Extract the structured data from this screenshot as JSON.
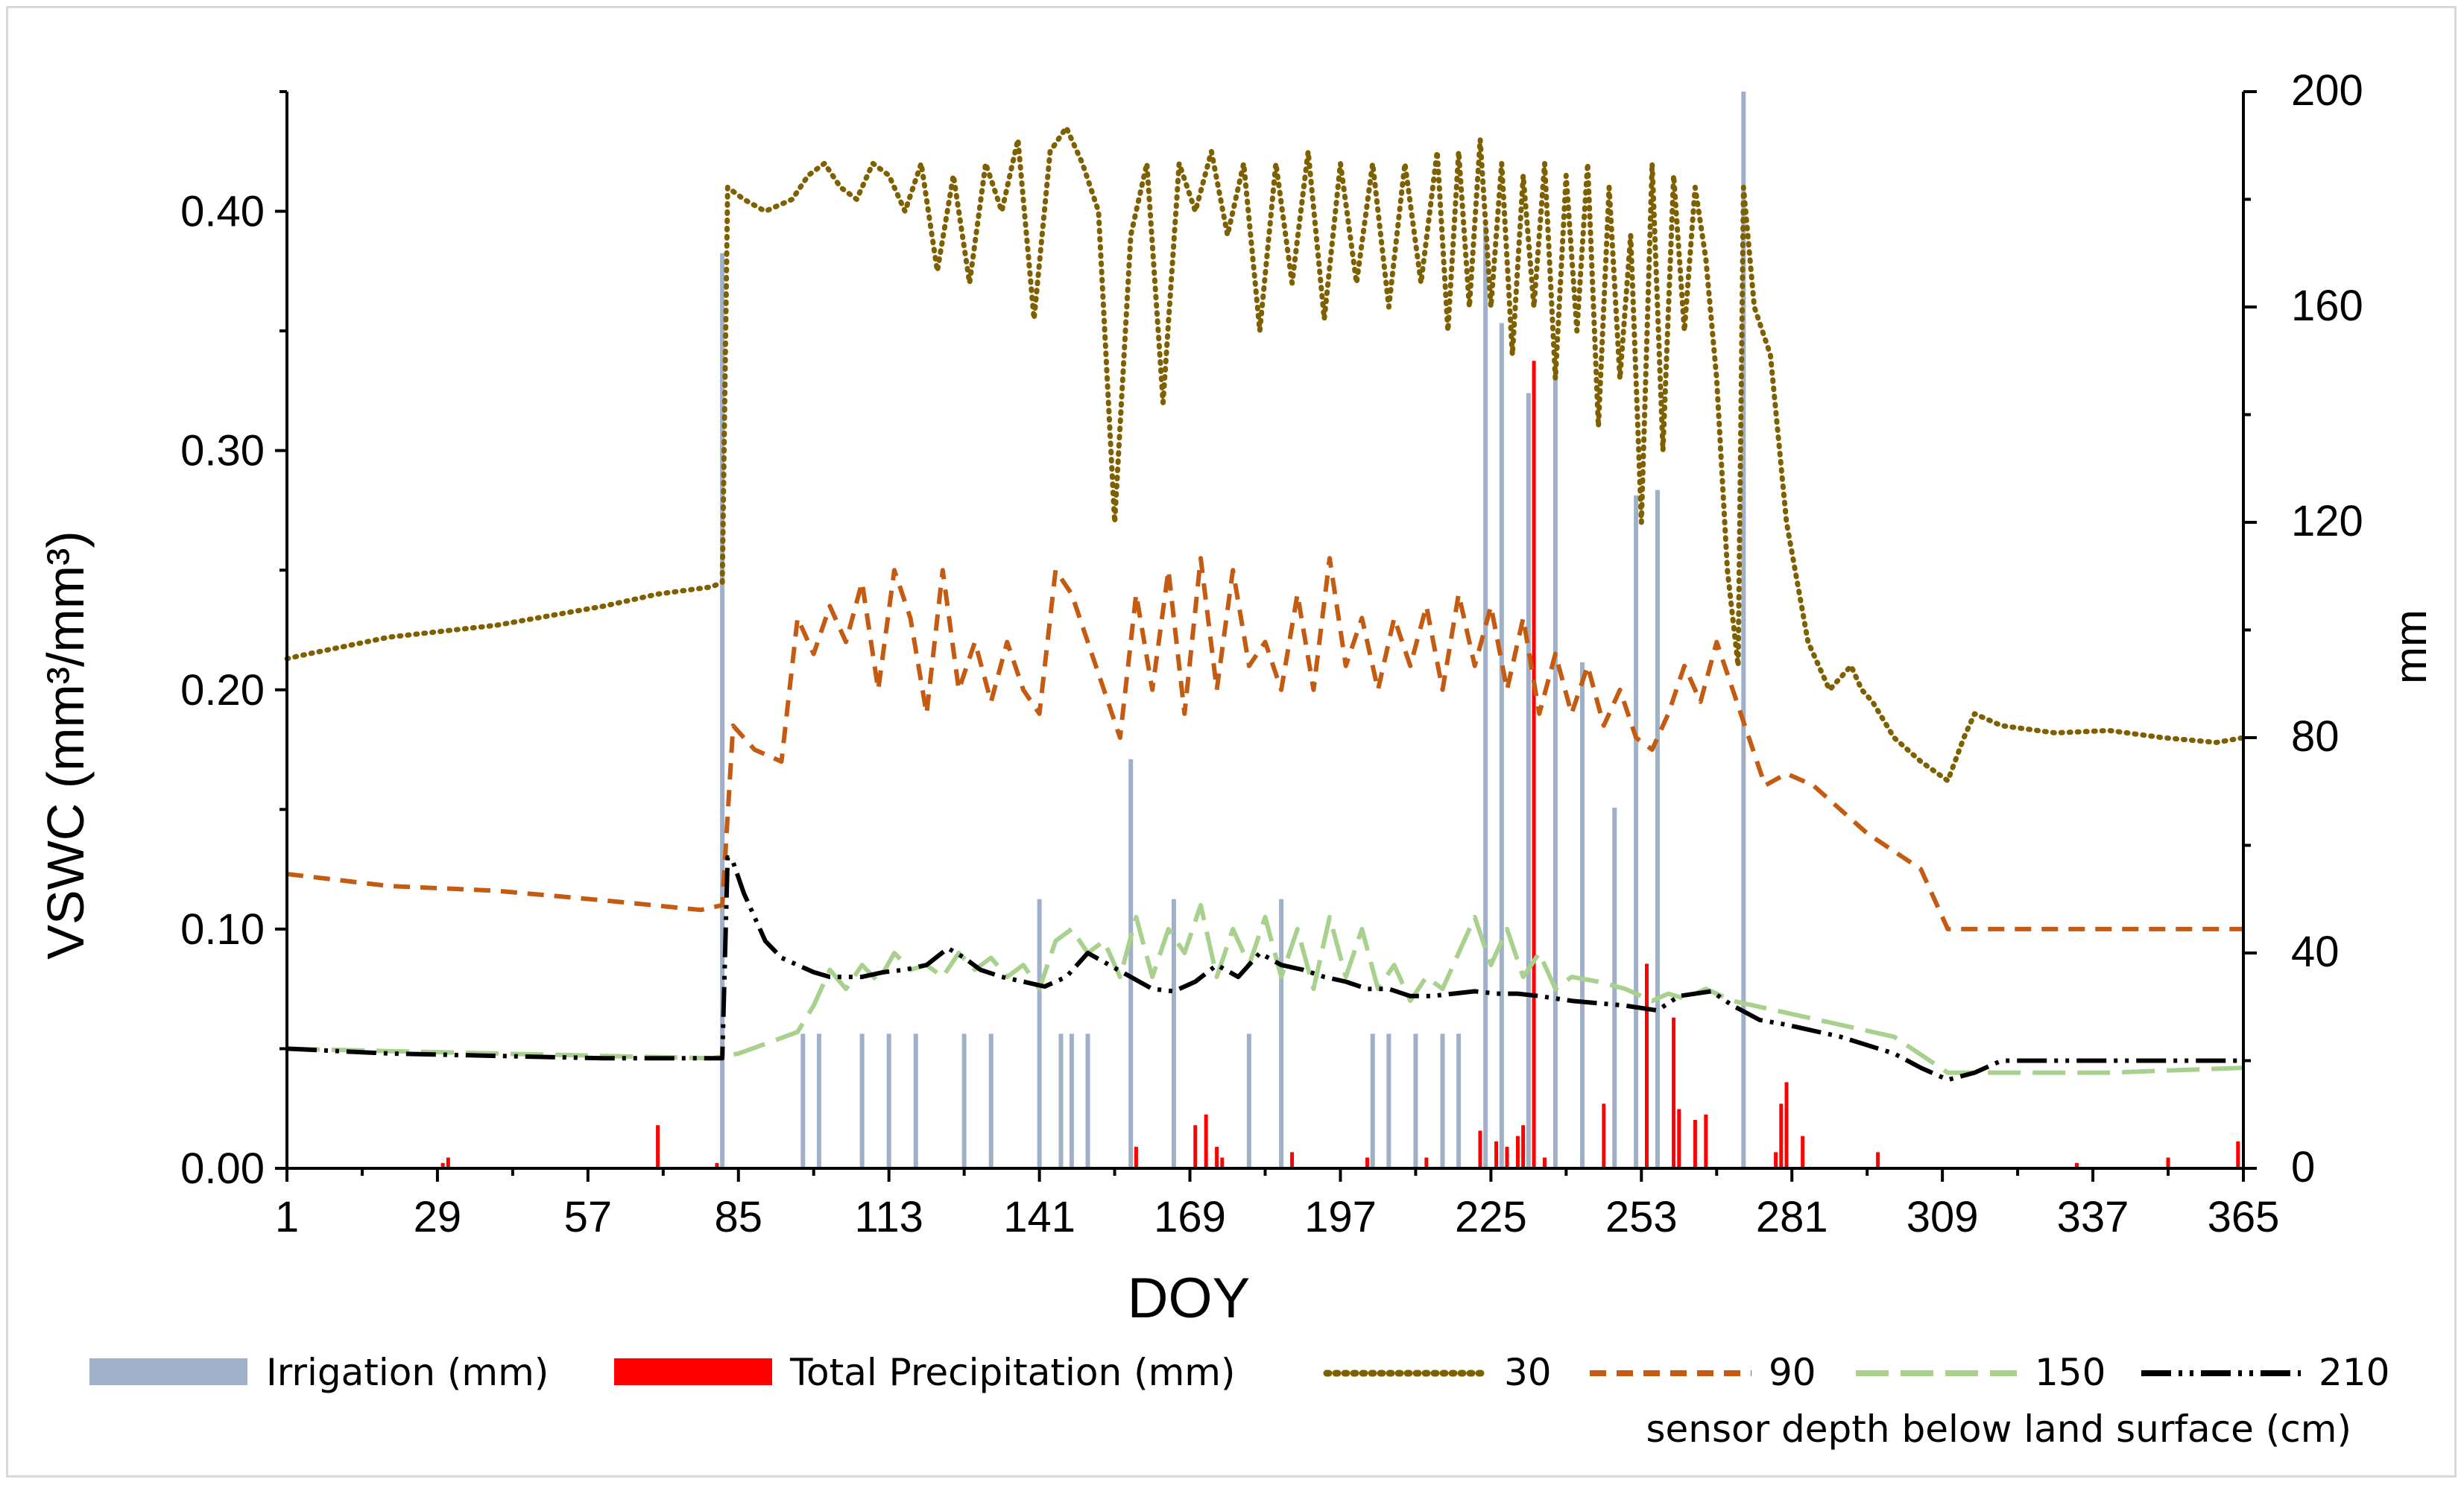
{
  "chart_data": {
    "type": "combo-line-bar",
    "xlabel": "DOY",
    "ylabel_left": "VSWC (mm³/mm³)",
    "ylabel_right": "mm",
    "x_ticks": [
      "1",
      "29",
      "57",
      "85",
      "113",
      "141",
      "169",
      "197",
      "225",
      "253",
      "281",
      "309",
      "337",
      "365"
    ],
    "xlim": [
      1,
      365
    ],
    "y_left_ticks": [
      "0.00",
      "0.10",
      "0.20",
      "0.30",
      "0.40"
    ],
    "ylim_left": [
      0,
      0.45
    ],
    "y_right_ticks": [
      "0",
      "40",
      "80",
      "120",
      "160",
      "200"
    ],
    "ylim_right": [
      0,
      200
    ],
    "legend": {
      "irrigation": "Irrigation (mm)",
      "precipitation": "Total Precipitation (mm)",
      "d30": "30",
      "d90": "90",
      "d150": "150",
      "d210": "210",
      "depth_note": "sensor depth below land surface (cm)"
    },
    "colors": {
      "irrigation": "#9fb0c8",
      "precipitation": "#ff0000",
      "d30": "#7f6000",
      "d90": "#c55a11",
      "d150": "#a9d18e",
      "d210": "#000000"
    },
    "irrigation": {
      "doy": [
        82,
        97,
        100,
        108,
        113,
        118,
        127,
        132,
        141,
        145,
        147,
        150,
        158,
        166,
        180,
        186,
        203,
        206,
        211,
        216,
        219,
        224,
        227,
        232,
        237,
        242,
        248,
        252,
        256,
        272
      ],
      "mm": [
        170,
        25,
        25,
        25,
        25,
        25,
        25,
        25,
        50,
        25,
        25,
        25,
        76,
        50,
        25,
        50,
        25,
        25,
        25,
        25,
        25,
        175,
        157,
        144,
        149,
        94,
        67,
        125,
        126,
        200
      ]
    },
    "precipitation": {
      "doy": [
        30,
        31,
        70,
        81,
        159,
        170,
        172,
        174,
        175,
        188,
        202,
        213,
        223,
        226,
        228,
        230,
        231,
        233,
        235,
        246,
        254,
        259,
        260,
        263,
        265,
        278,
        279,
        280,
        283,
        297,
        334,
        351,
        364
      ],
      "mm": [
        1,
        2,
        8,
        1,
        4,
        8,
        10,
        4,
        2,
        3,
        2,
        2,
        7,
        5,
        4,
        6,
        8,
        150,
        2,
        12,
        38,
        28,
        11,
        9,
        10,
        3,
        12,
        16,
        6,
        3,
        1,
        2,
        5
      ]
    },
    "series": [
      {
        "name": "30",
        "x": [
          1,
          5,
          20,
          40,
          60,
          70,
          80,
          82,
          83,
          86,
          90,
          95,
          98,
          101,
          104,
          107,
          110,
          113,
          116,
          119,
          122,
          125,
          128,
          131,
          134,
          137,
          140,
          143,
          146,
          149,
          152,
          155,
          158,
          161,
          164,
          167,
          170,
          173,
          176,
          179,
          182,
          185,
          188,
          191,
          194,
          197,
          200,
          203,
          206,
          209,
          212,
          215,
          217,
          219,
          221,
          223,
          225,
          227,
          229,
          231,
          233,
          235,
          237,
          239,
          241,
          243,
          245,
          247,
          249,
          251,
          253,
          255,
          257,
          259,
          261,
          263,
          265,
          267,
          269,
          271,
          272,
          274,
          277,
          280,
          284,
          288,
          292,
          294,
          296,
          300,
          305,
          310,
          313,
          315,
          320,
          330,
          340,
          350,
          360,
          365
        ],
        "values": [
          0.213,
          0.215,
          0.222,
          0.227,
          0.235,
          0.24,
          0.243,
          0.245,
          0.41,
          0.405,
          0.4,
          0.405,
          0.415,
          0.42,
          0.41,
          0.405,
          0.42,
          0.415,
          0.4,
          0.42,
          0.375,
          0.415,
          0.37,
          0.42,
          0.4,
          0.43,
          0.355,
          0.425,
          0.435,
          0.42,
          0.4,
          0.27,
          0.39,
          0.42,
          0.32,
          0.42,
          0.4,
          0.425,
          0.39,
          0.42,
          0.35,
          0.42,
          0.37,
          0.425,
          0.355,
          0.42,
          0.37,
          0.42,
          0.36,
          0.42,
          0.37,
          0.425,
          0.35,
          0.425,
          0.36,
          0.43,
          0.36,
          0.42,
          0.34,
          0.415,
          0.36,
          0.42,
          0.33,
          0.415,
          0.35,
          0.42,
          0.31,
          0.41,
          0.33,
          0.39,
          0.27,
          0.42,
          0.3,
          0.415,
          0.35,
          0.41,
          0.38,
          0.33,
          0.25,
          0.21,
          0.41,
          0.36,
          0.34,
          0.27,
          0.22,
          0.2,
          0.21,
          0.2,
          0.195,
          0.18,
          0.17,
          0.162,
          0.18,
          0.19,
          0.185,
          0.182,
          0.183,
          0.18,
          0.178,
          0.18
        ]
      },
      {
        "name": "90",
        "x": [
          1,
          20,
          40,
          60,
          78,
          82,
          84,
          88,
          93,
          96,
          99,
          102,
          105,
          108,
          111,
          114,
          117,
          120,
          123,
          126,
          129,
          132,
          135,
          138,
          141,
          144,
          147,
          150,
          153,
          156,
          159,
          162,
          165,
          168,
          171,
          174,
          177,
          180,
          183,
          186,
          189,
          192,
          195,
          198,
          201,
          204,
          207,
          210,
          213,
          216,
          219,
          222,
          225,
          228,
          231,
          234,
          237,
          240,
          243,
          246,
          249,
          252,
          255,
          258,
          261,
          264,
          267,
          270,
          273,
          276,
          280,
          285,
          295,
          305,
          310,
          320,
          340,
          365
        ],
        "values": [
          0.123,
          0.118,
          0.116,
          0.112,
          0.108,
          0.11,
          0.185,
          0.175,
          0.17,
          0.23,
          0.215,
          0.235,
          0.22,
          0.245,
          0.2,
          0.25,
          0.23,
          0.19,
          0.25,
          0.2,
          0.22,
          0.195,
          0.22,
          0.2,
          0.19,
          0.25,
          0.24,
          0.22,
          0.2,
          0.18,
          0.24,
          0.2,
          0.25,
          0.19,
          0.255,
          0.2,
          0.25,
          0.21,
          0.22,
          0.2,
          0.24,
          0.2,
          0.255,
          0.21,
          0.23,
          0.2,
          0.23,
          0.21,
          0.235,
          0.2,
          0.24,
          0.21,
          0.235,
          0.2,
          0.23,
          0.19,
          0.215,
          0.19,
          0.21,
          0.185,
          0.2,
          0.18,
          0.175,
          0.19,
          0.21,
          0.195,
          0.22,
          0.2,
          0.18,
          0.16,
          0.165,
          0.16,
          0.14,
          0.125,
          0.1,
          0.1,
          0.1,
          0.1
        ]
      },
      {
        "name": "150",
        "x": [
          1,
          20,
          40,
          60,
          80,
          85,
          90,
          96,
          99,
          102,
          105,
          108,
          111,
          114,
          117,
          120,
          123,
          126,
          129,
          132,
          135,
          138,
          141,
          144,
          147,
          150,
          153,
          156,
          159,
          162,
          165,
          168,
          171,
          174,
          177,
          180,
          183,
          186,
          189,
          192,
          195,
          198,
          201,
          204,
          207,
          210,
          213,
          216,
          219,
          222,
          225,
          228,
          231,
          234,
          237,
          240,
          245,
          250,
          255,
          258,
          261,
          265,
          270,
          280,
          290,
          300,
          310,
          320,
          340,
          365
        ],
        "values": [
          0.05,
          0.049,
          0.048,
          0.047,
          0.046,
          0.048,
          0.052,
          0.057,
          0.068,
          0.083,
          0.075,
          0.085,
          0.078,
          0.09,
          0.083,
          0.085,
          0.08,
          0.09,
          0.083,
          0.088,
          0.08,
          0.085,
          0.075,
          0.095,
          0.1,
          0.09,
          0.095,
          0.08,
          0.105,
          0.08,
          0.1,
          0.09,
          0.11,
          0.08,
          0.1,
          0.085,
          0.105,
          0.08,
          0.1,
          0.075,
          0.105,
          0.08,
          0.1,
          0.075,
          0.085,
          0.07,
          0.08,
          0.075,
          0.09,
          0.105,
          0.085,
          0.1,
          0.08,
          0.09,
          0.075,
          0.08,
          0.078,
          0.075,
          0.07,
          0.073,
          0.071,
          0.075,
          0.07,
          0.065,
          0.06,
          0.055,
          0.04,
          0.04,
          0.04,
          0.042
        ]
      },
      {
        "name": "210",
        "x": [
          1,
          20,
          40,
          60,
          75,
          82,
          83,
          84,
          86,
          88,
          90,
          93,
          96,
          99,
          102,
          105,
          108,
          112,
          116,
          120,
          124,
          127,
          130,
          134,
          138,
          142,
          146,
          150,
          154,
          158,
          162,
          166,
          170,
          174,
          178,
          182,
          186,
          190,
          194,
          198,
          202,
          206,
          210,
          214,
          218,
          222,
          226,
          230,
          234,
          240,
          250,
          256,
          260,
          266,
          270,
          275,
          280,
          290,
          300,
          305,
          310,
          315,
          320,
          340,
          365
        ],
        "values": [
          0.05,
          0.048,
          0.047,
          0.046,
          0.046,
          0.046,
          0.13,
          0.128,
          0.115,
          0.105,
          0.095,
          0.088,
          0.085,
          0.082,
          0.08,
          0.08,
          0.08,
          0.082,
          0.083,
          0.085,
          0.092,
          0.088,
          0.083,
          0.08,
          0.078,
          0.076,
          0.08,
          0.09,
          0.085,
          0.08,
          0.075,
          0.074,
          0.078,
          0.085,
          0.08,
          0.09,
          0.085,
          0.083,
          0.08,
          0.078,
          0.075,
          0.075,
          0.072,
          0.072,
          0.073,
          0.074,
          0.073,
          0.073,
          0.072,
          0.07,
          0.068,
          0.066,
          0.072,
          0.074,
          0.068,
          0.062,
          0.06,
          0.055,
          0.048,
          0.042,
          0.037,
          0.04,
          0.045,
          0.045,
          0.045
        ]
      }
    ]
  }
}
